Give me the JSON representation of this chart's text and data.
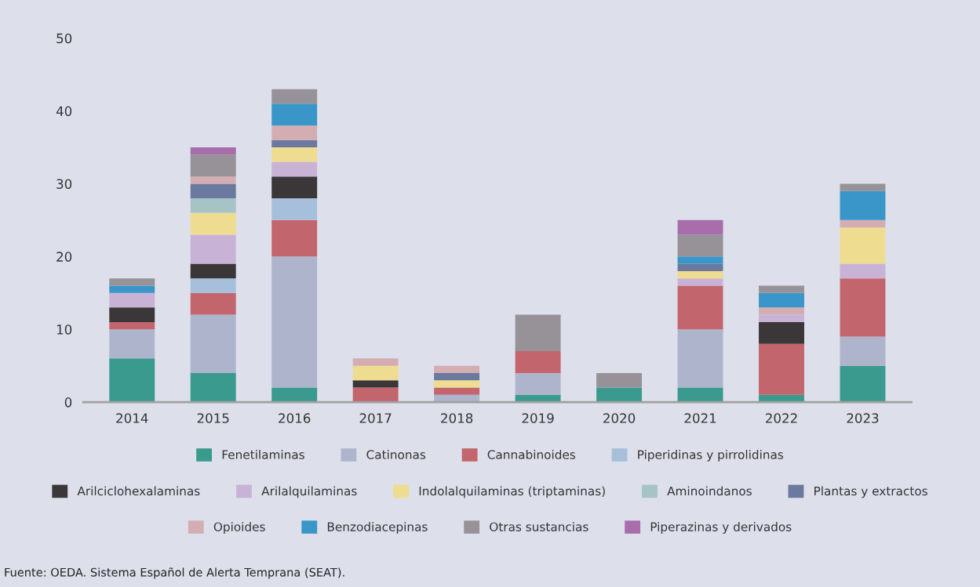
{
  "chart_data": {
    "type": "bar",
    "stacked": true,
    "categories": [
      "2014",
      "2015",
      "2016",
      "2017",
      "2018",
      "2019",
      "2020",
      "2021",
      "2022",
      "2023"
    ],
    "series": [
      {
        "name": "Fenetilaminas",
        "color": "#3a9a8e",
        "values": [
          6,
          4,
          2,
          0,
          0,
          1,
          2,
          2,
          1,
          5
        ]
      },
      {
        "name": "Catinonas",
        "color": "#aeb4cb",
        "values": [
          4,
          8,
          18,
          0,
          1,
          3,
          0,
          8,
          0,
          4
        ]
      },
      {
        "name": "Cannabinoides",
        "color": "#c3656c",
        "values": [
          1,
          3,
          5,
          2,
          1,
          3,
          0,
          6,
          7,
          8
        ]
      },
      {
        "name": "Piperidinas y pirrolidinas",
        "color": "#a6c0dc",
        "values": [
          0,
          2,
          3,
          0,
          0,
          0,
          0,
          0,
          0,
          0
        ]
      },
      {
        "name": "Arilciclohexalaminas",
        "color": "#3b3738",
        "values": [
          2,
          2,
          3,
          1,
          0,
          0,
          0,
          0,
          3,
          0
        ]
      },
      {
        "name": "Arilalquilaminas",
        "color": "#c8b3d6",
        "values": [
          2,
          4,
          2,
          0,
          0,
          0,
          0,
          1,
          1,
          2
        ]
      },
      {
        "name": "Indolalquilaminas (triptaminas)",
        "color": "#eedd90",
        "values": [
          0,
          3,
          2,
          2,
          1,
          0,
          0,
          1,
          0,
          5
        ]
      },
      {
        "name": "Aminoindanos",
        "color": "#a6c3c6",
        "values": [
          0,
          2,
          0,
          0,
          0,
          0,
          0,
          0,
          0,
          0
        ]
      },
      {
        "name": "Plantas y extractos",
        "color": "#6b799e",
        "values": [
          0,
          2,
          1,
          0,
          1,
          0,
          0,
          1,
          0,
          0
        ]
      },
      {
        "name": "Opioides",
        "color": "#d4adb3",
        "values": [
          0,
          1,
          2,
          1,
          1,
          0,
          0,
          0,
          1,
          1
        ]
      },
      {
        "name": "Benzodiacepinas",
        "color": "#3a96c8",
        "values": [
          1,
          0,
          3,
          0,
          0,
          0,
          0,
          1,
          2,
          4
        ]
      },
      {
        "name": "Otras sustancias",
        "color": "#969298",
        "values": [
          1,
          3,
          2,
          0,
          0,
          5,
          2,
          3,
          1,
          1
        ]
      },
      {
        "name": "Piperazinas y derivados",
        "color": "#a86dab",
        "values": [
          0,
          1,
          0,
          0,
          0,
          0,
          0,
          2,
          0,
          0
        ]
      }
    ],
    "ylim": [
      0,
      50
    ],
    "yticks": [
      0,
      10,
      20,
      30,
      40,
      50
    ],
    "grid": false,
    "legend": "bottom",
    "annotations": [
      "Fuente: OEDA. Sistema Español de Alerta Temprana (SEAT)."
    ]
  }
}
